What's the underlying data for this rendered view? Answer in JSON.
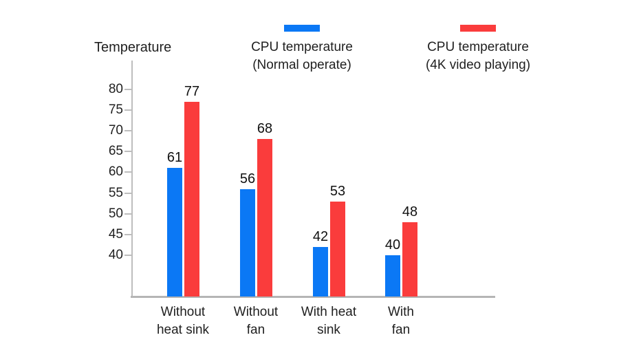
{
  "chart_data": {
    "type": "bar",
    "title": "Temperature",
    "ylabel": "Temperature",
    "xlabel": "",
    "categories": [
      "Without\nheat sink",
      "Without\nfan",
      "With heat\nsink",
      "With\nfan"
    ],
    "series": [
      {
        "name": "CPU temperature (Normal operate)",
        "legend_line1": "CPU temperature",
        "legend_line2": "(Normal operate)",
        "color": "#0b78f5",
        "values": [
          61,
          56,
          42,
          40
        ]
      },
      {
        "name": "CPU temperature (4K video playing)",
        "legend_line1": "CPU temperature",
        "legend_line2": "(4K video playing)",
        "color": "#fa3c3c",
        "values": [
          77,
          68,
          53,
          48
        ]
      }
    ],
    "yticks": [
      40,
      45,
      50,
      55,
      60,
      65,
      70,
      75,
      80
    ],
    "ylim": [
      30,
      87
    ],
    "grid": false,
    "legend_position": "top",
    "value_labels": true,
    "axis_color": "#b5b5b5",
    "text_color": "#1f1f1f"
  }
}
